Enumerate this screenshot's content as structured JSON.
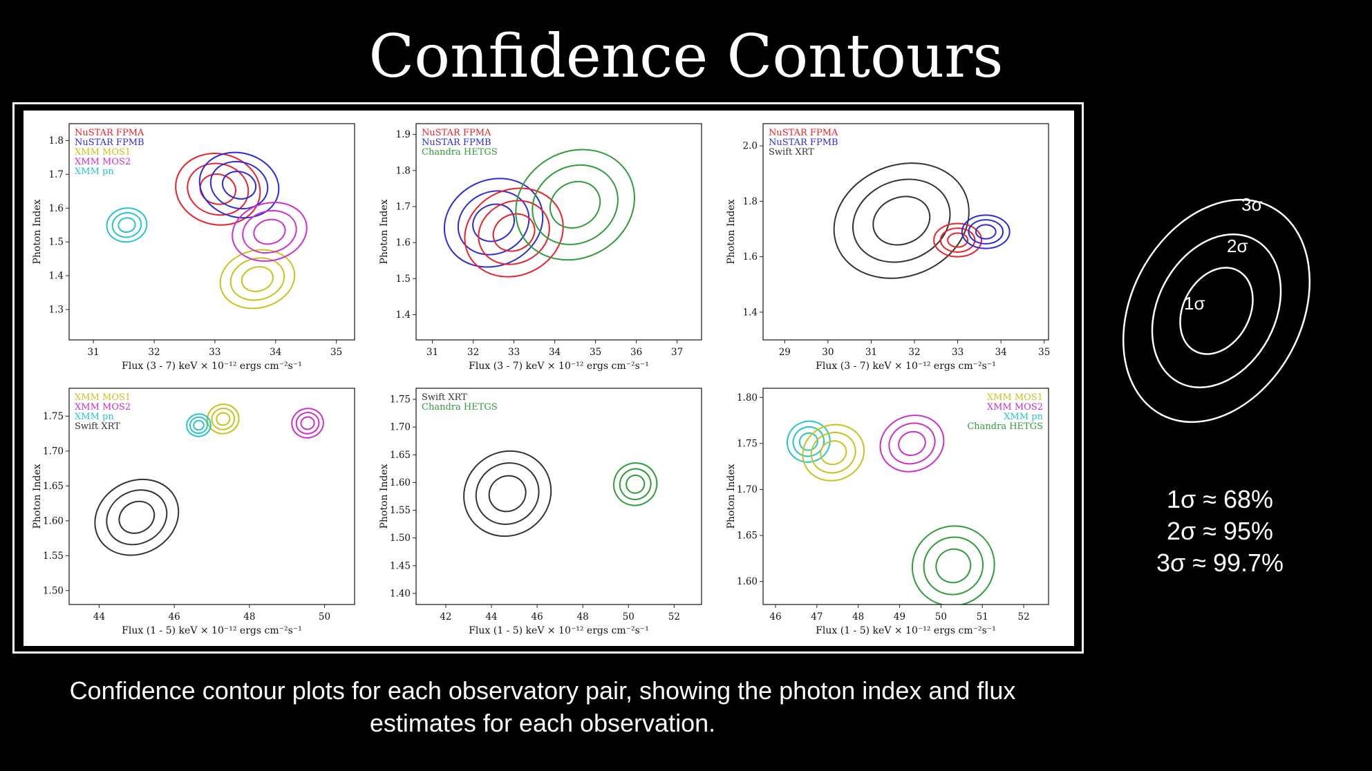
{
  "title": "Confidence Contours",
  "caption": "Confidence contour plots for each observatory pair, showing the photon index and flux estimates for each observation.",
  "sigma_diagram": {
    "labels": [
      "1σ",
      "2σ",
      "3σ"
    ]
  },
  "sigma_percent": [
    "1σ ≈ 68%",
    "2σ ≈ 95%",
    "3σ ≈ 99.7%"
  ],
  "colors": {
    "NuSTAR FPMA": "#e8222a",
    "NuSTAR FPMB": "#2b2bd9",
    "XMM MOS1": "#c8c21a",
    "XMM MOS2": "#cc2fcc",
    "XMM pn": "#27c4cc",
    "Chandra HETGS": "#2f9c3a",
    "Swift XRT": "#333333"
  },
  "chart_data": [
    {
      "type": "contour",
      "xlabel": "Flux (3 - 7) keV × 10⁻¹² ergs cm⁻²s⁻¹",
      "ylabel": "Photon Index",
      "xlim": [
        30.6,
        35.3
      ],
      "ylim": [
        1.21,
        1.85
      ],
      "xticks": [
        31,
        32,
        33,
        34,
        35
      ],
      "yticks": [
        1.3,
        1.4,
        1.5,
        1.6,
        1.7,
        1.8
      ],
      "xtick_labels": [
        "31",
        "32",
        "33",
        "34",
        "35"
      ],
      "ytick_labels": [
        "1.3",
        "1.4",
        "1.5",
        "1.6",
        "1.7",
        "1.8"
      ],
      "legend": [
        "NuSTAR FPMA",
        "NuSTAR FPMB",
        "XMM MOS1",
        "XMM MOS2",
        "XMM pn"
      ],
      "legend_position": "top-left",
      "series": [
        {
          "name": "NuSTAR FPMA",
          "center": [
            33.05,
            1.656
          ],
          "sx": 0.7,
          "sy": 0.105,
          "tilt": 12
        },
        {
          "name": "NuSTAR FPMB",
          "center": [
            33.4,
            1.668
          ],
          "sx": 0.66,
          "sy": 0.095,
          "tilt": 15
        },
        {
          "name": "XMM MOS1",
          "center": [
            33.7,
            1.39
          ],
          "sx": 0.62,
          "sy": 0.085,
          "tilt": -14
        },
        {
          "name": "XMM MOS2",
          "center": [
            33.9,
            1.53
          ],
          "sx": 0.62,
          "sy": 0.085,
          "tilt": -14
        },
        {
          "name": "XMM pn",
          "center": [
            31.55,
            1.55
          ],
          "sx": 0.33,
          "sy": 0.05,
          "tilt": -8
        }
      ]
    },
    {
      "type": "contour",
      "xlabel": "Flux (3 - 7) keV × 10⁻¹² ergs cm⁻²s⁻¹",
      "ylabel": "Photon Index",
      "xlim": [
        30.6,
        37.6
      ],
      "ylim": [
        1.33,
        1.93
      ],
      "xticks": [
        31,
        32,
        33,
        34,
        35,
        36,
        37
      ],
      "yticks": [
        1.4,
        1.5,
        1.6,
        1.7,
        1.8,
        1.9
      ],
      "xtick_labels": [
        "31",
        "32",
        "33",
        "34",
        "35",
        "36",
        "37"
      ],
      "ytick_labels": [
        "1.4",
        "1.5",
        "1.6",
        "1.7",
        "1.8",
        "1.9"
      ],
      "legend": [
        "NuSTAR FPMA",
        "NuSTAR FPMB",
        "Chandra HETGS"
      ],
      "legend_position": "top-left",
      "series": [
        {
          "name": "NuSTAR FPMB",
          "center": [
            32.5,
            1.655
          ],
          "sx": 1.05,
          "sy": 0.14,
          "tilt": 65
        },
        {
          "name": "NuSTAR FPMA",
          "center": [
            33.0,
            1.628
          ],
          "sx": 1.05,
          "sy": 0.14,
          "tilt": 65
        },
        {
          "name": "Chandra HETGS",
          "center": [
            34.5,
            1.705
          ],
          "sx": 1.3,
          "sy": 0.17,
          "tilt": 60
        }
      ]
    },
    {
      "type": "contour",
      "xlabel": "Flux (3 - 7) keV × 10⁻¹² ergs cm⁻²s⁻¹",
      "ylabel": "Photon Index",
      "xlim": [
        28.5,
        35.1
      ],
      "ylim": [
        1.3,
        2.08
      ],
      "xticks": [
        29,
        30,
        31,
        32,
        33,
        34,
        35
      ],
      "yticks": [
        1.4,
        1.6,
        1.8,
        2.0
      ],
      "xtick_labels": [
        "29",
        "30",
        "31",
        "32",
        "33",
        "34",
        "35"
      ],
      "ytick_labels": [
        "1.4",
        "1.6",
        "1.8",
        "2.0"
      ],
      "legend": [
        "NuSTAR FPMA",
        "NuSTAR FPMB",
        "Swift XRT"
      ],
      "legend_position": "top-left",
      "series": [
        {
          "name": "Swift XRT",
          "center": [
            31.7,
            1.73
          ],
          "sx": 1.6,
          "sy": 0.2,
          "tilt": -22
        },
        {
          "name": "NuSTAR FPMA",
          "center": [
            33.0,
            1.66
          ],
          "sx": 0.55,
          "sy": 0.06,
          "tilt": 0
        },
        {
          "name": "NuSTAR FPMB",
          "center": [
            33.65,
            1.69
          ],
          "sx": 0.55,
          "sy": 0.06,
          "tilt": 0
        }
      ]
    },
    {
      "type": "contour",
      "xlabel": "Flux (1 - 5) keV × 10⁻¹² ergs cm⁻²s⁻¹",
      "ylabel": "Photon Index",
      "xlim": [
        43.2,
        50.8
      ],
      "ylim": [
        1.48,
        1.79
      ],
      "xticks": [
        44,
        46,
        48,
        50
      ],
      "yticks": [
        1.5,
        1.55,
        1.6,
        1.65,
        1.7,
        1.75
      ],
      "xtick_labels": [
        "44",
        "46",
        "48",
        "50"
      ],
      "ytick_labels": [
        "1.50",
        "1.55",
        "1.60",
        "1.65",
        "1.70",
        "1.75"
      ],
      "legend": [
        "XMM MOS1",
        "XMM MOS2",
        "XMM pn",
        "Swift XRT"
      ],
      "legend_position": "top-left",
      "series": [
        {
          "name": "Swift XRT",
          "center": [
            45.0,
            1.605
          ],
          "sx": 1.15,
          "sy": 0.052,
          "tilt": -28
        },
        {
          "name": "XMM MOS1",
          "center": [
            47.3,
            1.746
          ],
          "sx": 0.42,
          "sy": 0.021,
          "tilt": -10
        },
        {
          "name": "XMM pn",
          "center": [
            46.65,
            1.737
          ],
          "sx": 0.32,
          "sy": 0.016,
          "tilt": -10
        },
        {
          "name": "XMM MOS2",
          "center": [
            49.55,
            1.74
          ],
          "sx": 0.42,
          "sy": 0.021,
          "tilt": -10
        }
      ]
    },
    {
      "type": "contour",
      "xlabel": "Flux (1 - 5) keV × 10⁻¹² ergs cm⁻²s⁻¹",
      "ylabel": "Photon Index",
      "xlim": [
        40.7,
        53.2
      ],
      "ylim": [
        1.38,
        1.77
      ],
      "xticks": [
        42,
        44,
        46,
        48,
        50,
        52
      ],
      "yticks": [
        1.4,
        1.45,
        1.5,
        1.55,
        1.6,
        1.65,
        1.7,
        1.75
      ],
      "xtick_labels": [
        "42",
        "44",
        "46",
        "48",
        "50",
        "52"
      ],
      "ytick_labels": [
        "1.40",
        "1.45",
        "1.50",
        "1.55",
        "1.60",
        "1.65",
        "1.70",
        "1.75"
      ],
      "legend": [
        "Swift XRT",
        "Chandra HETGS"
      ],
      "legend_position": "top-left",
      "series": [
        {
          "name": "Swift XRT",
          "center": [
            44.7,
            1.58
          ],
          "sx": 1.95,
          "sy": 0.075,
          "tilt": -35
        },
        {
          "name": "Chandra HETGS",
          "center": [
            50.3,
            1.597
          ],
          "sx": 0.95,
          "sy": 0.038,
          "tilt": -28
        }
      ]
    },
    {
      "type": "contour",
      "xlabel": "Flux (1 - 5) keV × 10⁻¹² ergs cm⁻²s⁻¹",
      "ylabel": "Photon Index",
      "xlim": [
        45.7,
        52.6
      ],
      "ylim": [
        1.575,
        1.81
      ],
      "xticks": [
        46,
        47,
        48,
        49,
        50,
        51,
        52
      ],
      "yticks": [
        1.6,
        1.65,
        1.7,
        1.75,
        1.8
      ],
      "xtick_labels": [
        "46",
        "47",
        "48",
        "49",
        "50",
        "51",
        "52"
      ],
      "ytick_labels": [
        "1.60",
        "1.65",
        "1.70",
        "1.75",
        "1.80"
      ],
      "legend": [
        "XMM MOS1",
        "XMM MOS2",
        "XMM pn",
        "Chandra HETGS"
      ],
      "legend_position": "top-right",
      "series": [
        {
          "name": "XMM pn",
          "center": [
            46.8,
            1.752
          ],
          "sx": 0.52,
          "sy": 0.022,
          "tilt": -20
        },
        {
          "name": "XMM MOS1",
          "center": [
            47.4,
            1.74
          ],
          "sx": 0.75,
          "sy": 0.03,
          "tilt": -20
        },
        {
          "name": "XMM MOS2",
          "center": [
            49.3,
            1.75
          ],
          "sx": 0.78,
          "sy": 0.03,
          "tilt": -20
        },
        {
          "name": "Chandra HETGS",
          "center": [
            50.3,
            1.617
          ],
          "sx": 1.0,
          "sy": 0.043,
          "tilt": -25
        }
      ]
    }
  ]
}
